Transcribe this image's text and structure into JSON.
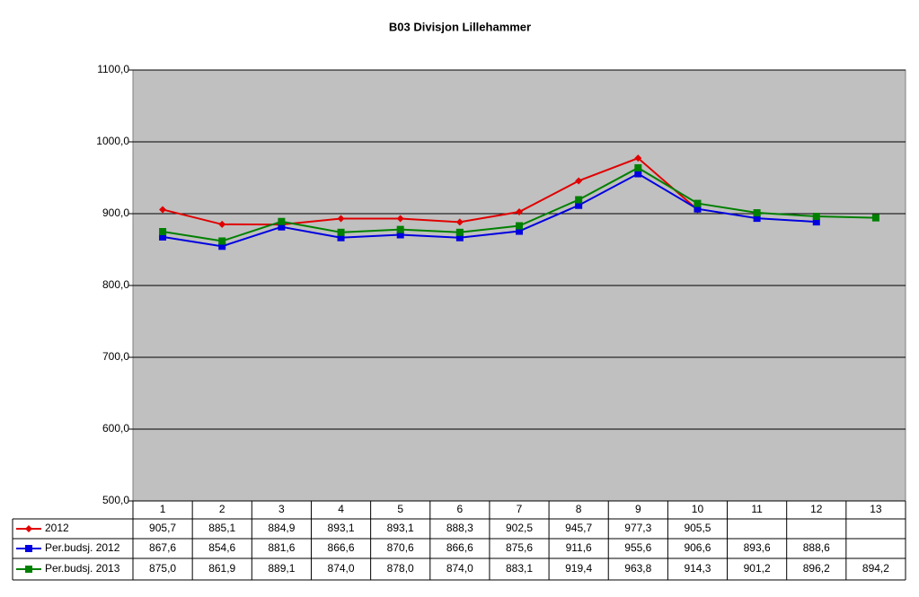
{
  "chart_data": {
    "type": "line",
    "title": "B03 Divisjon Lillehammer",
    "categories": [
      "1",
      "2",
      "3",
      "4",
      "5",
      "6",
      "7",
      "8",
      "9",
      "10",
      "11",
      "12",
      "13"
    ],
    "series": [
      {
        "name": "2012",
        "color": "#e00000",
        "marker": "diamond",
        "values": [
          905.7,
          885.1,
          884.9,
          893.1,
          893.1,
          888.3,
          902.5,
          945.7,
          977.3,
          905.5,
          null,
          null,
          null
        ],
        "value_labels": [
          "905,7",
          "885,1",
          "884,9",
          "893,1",
          "893,1",
          "888,3",
          "902,5",
          "945,7",
          "977,3",
          "905,5",
          null,
          null,
          null
        ]
      },
      {
        "name": "Per.budsj. 2012",
        "color": "#0000e0",
        "marker": "square",
        "values": [
          867.6,
          854.6,
          881.6,
          866.6,
          870.6,
          866.6,
          875.6,
          911.6,
          955.6,
          906.6,
          893.6,
          888.6,
          null
        ],
        "value_labels": [
          "867,6",
          "854,6",
          "881,6",
          "866,6",
          "870,6",
          "866,6",
          "875,6",
          "911,6",
          "955,6",
          "906,6",
          "893,6",
          "888,6",
          null
        ]
      },
      {
        "name": "Per.budsj. 2013",
        "color": "#008000",
        "marker": "square",
        "values": [
          875.0,
          861.9,
          889.1,
          874.0,
          878.0,
          874.0,
          883.1,
          919.4,
          963.8,
          914.3,
          901.2,
          896.2,
          894.2
        ],
        "value_labels": [
          "875,0",
          "861,9",
          "889,1",
          "874,0",
          "878,0",
          "874,0",
          "883,1",
          "919,4",
          "963,8",
          "914,3",
          "901,2",
          "896,2",
          "894,2"
        ]
      }
    ],
    "ylim": [
      500,
      1100
    ],
    "yticks": [
      {
        "value": 500,
        "label": "500,0"
      },
      {
        "value": 600,
        "label": "600,0"
      },
      {
        "value": 700,
        "label": "700,0"
      },
      {
        "value": 800,
        "label": "800,0"
      },
      {
        "value": 900,
        "label": "900,0"
      },
      {
        "value": 1000,
        "label": "1000,0"
      },
      {
        "value": 1100,
        "label": "1100,0"
      }
    ],
    "grid": true,
    "legend": "table"
  }
}
